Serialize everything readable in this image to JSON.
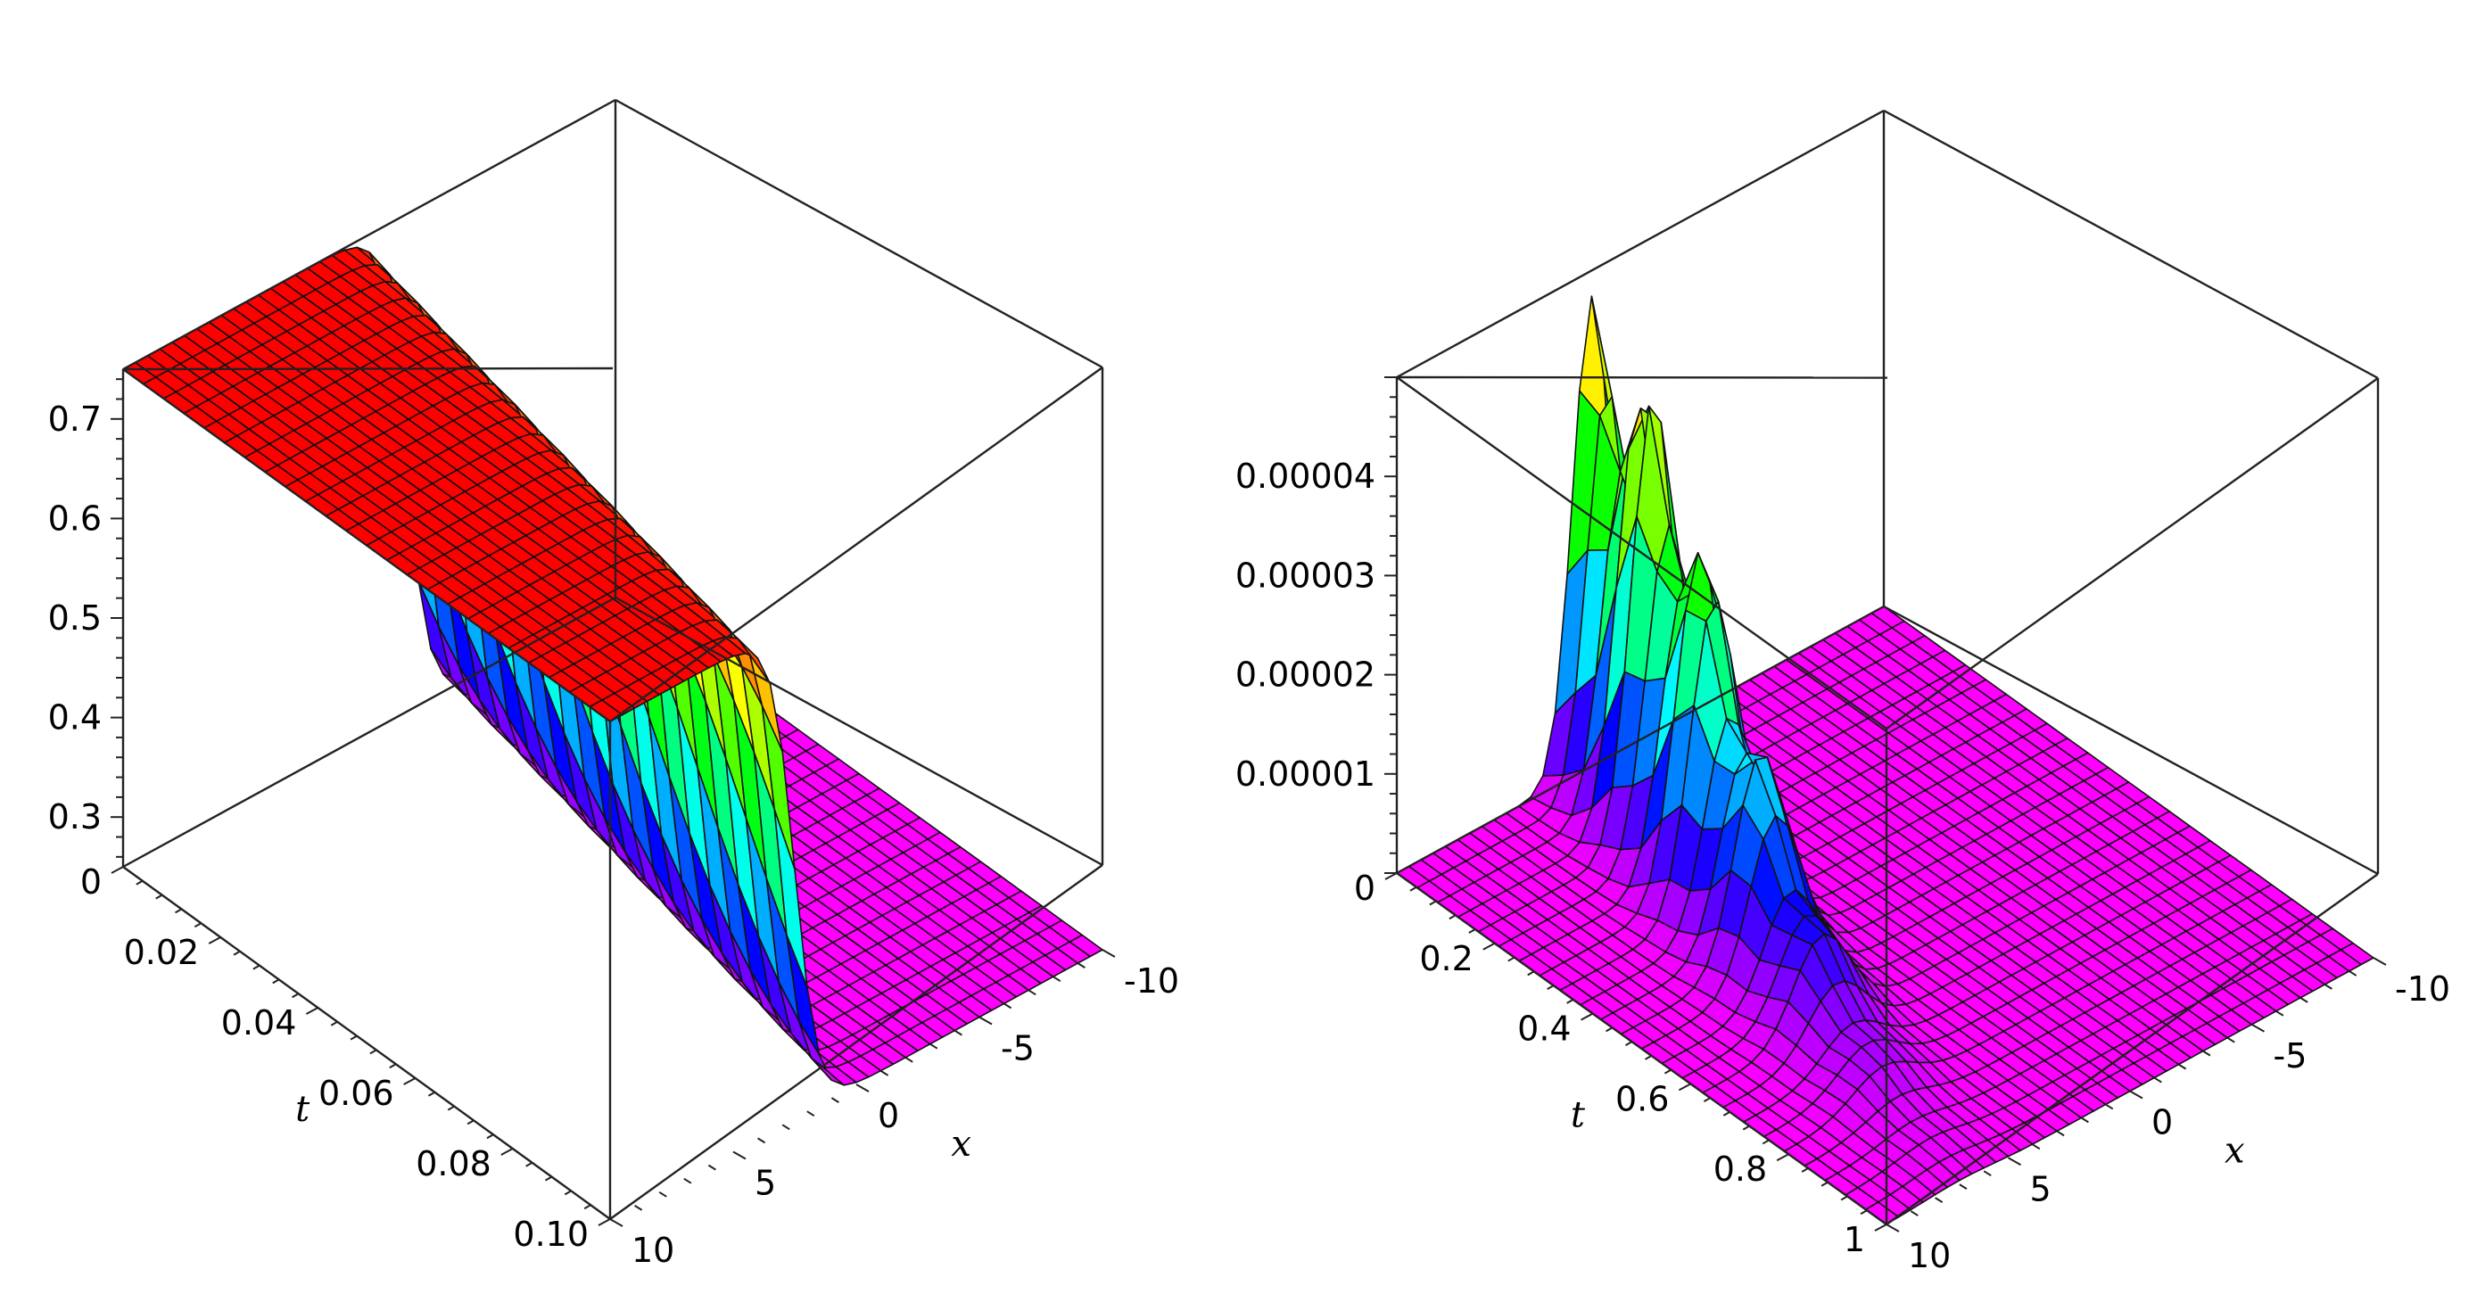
{
  "chart_data": [
    {
      "type": "surface3d",
      "surface_kind": "kink",
      "x_axis": {
        "label": "x",
        "range": [
          -10,
          10
        ],
        "tick_labels": [
          "-10",
          "-5",
          "0",
          "5",
          "10"
        ]
      },
      "t_axis": {
        "label": "t",
        "range": [
          0,
          0.1
        ],
        "tick_labels": [
          "0",
          "0.02",
          "0.04",
          "0.06",
          "0.08",
          "0.10"
        ]
      },
      "z_axis": {
        "label": "",
        "range": [
          0.25,
          0.75
        ],
        "tick_labels": [
          "0.3",
          "0.4",
          "0.5",
          "0.6",
          "0.7"
        ]
      },
      "z_low": 0.25,
      "z_high": 0.75,
      "colormap": "rainbow",
      "grid": true
    },
    {
      "type": "surface3d",
      "surface_kind": "pulse",
      "x_axis": {
        "label": "x",
        "range": [
          -10,
          10
        ],
        "tick_labels": [
          "-10",
          "-5",
          "0",
          "5",
          "10"
        ]
      },
      "t_axis": {
        "label": "t",
        "range": [
          0,
          1
        ],
        "tick_labels": [
          "0",
          "0.2",
          "0.4",
          "0.6",
          "0.8",
          "1"
        ]
      },
      "z_axis": {
        "label": "",
        "range": [
          0,
          5e-05
        ],
        "tick_labels": [
          "0.00001",
          "0.00002",
          "0.00003",
          "0.00004"
        ]
      },
      "z_peak": 4.8e-05,
      "colormap": "rainbow",
      "grid": true
    }
  ]
}
